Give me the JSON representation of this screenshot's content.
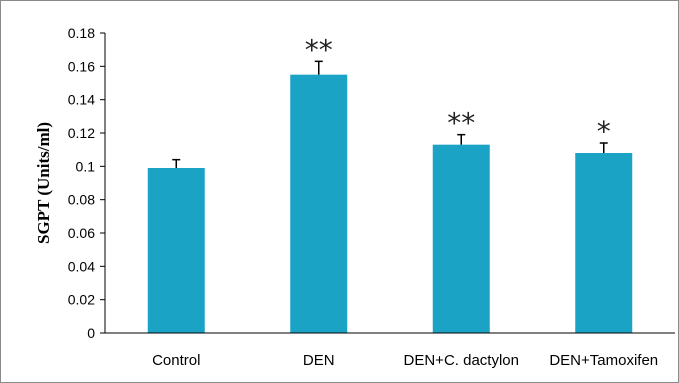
{
  "chart_data": {
    "type": "bar",
    "title": "",
    "xlabel": "",
    "ylabel": "SGPT  (Units/ml)",
    "categories": [
      "Control",
      "DEN",
      "DEN+C. dactylon",
      "DEN+Tamoxifen"
    ],
    "values": [
      0.099,
      0.155,
      0.113,
      0.108
    ],
    "error": [
      0.005,
      0.008,
      0.006,
      0.006
    ],
    "significance": [
      "",
      "**",
      "**",
      "*"
    ],
    "ylim": [
      0,
      0.18
    ],
    "yticks": [
      0,
      0.02,
      0.04,
      0.06,
      0.08,
      0.1,
      0.12,
      0.14,
      0.16,
      0.18
    ],
    "ytick_labels": [
      "0",
      "0.02",
      "0.04",
      "0.06",
      "0.08",
      "0.1",
      "0.12",
      "0.14",
      "0.16",
      "0.18"
    ],
    "grid": false,
    "bar_color": "#1ba3c6",
    "axis_color": "#000000"
  }
}
